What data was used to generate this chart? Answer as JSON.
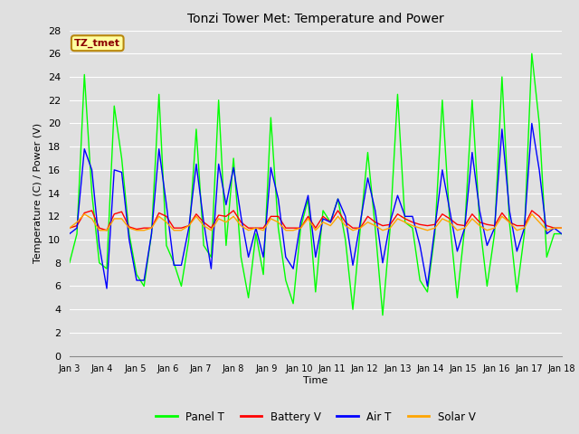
{
  "title": "Tonzi Tower Met: Temperature and Power",
  "xlabel": "Time",
  "ylabel": "Temperature (C) / Power (V)",
  "ylim": [
    0,
    28
  ],
  "yticks": [
    0,
    2,
    4,
    6,
    8,
    10,
    12,
    14,
    16,
    18,
    20,
    22,
    24,
    26,
    28
  ],
  "x_labels": [
    "Jan 3",
    "Jan 4",
    "Jan 5",
    "Jan 6",
    "Jan 7",
    "Jan 8",
    "Jan 9",
    "Jan 10",
    "Jan 11",
    "Jan 12",
    "Jan 13",
    "Jan 14",
    "Jan 15",
    "Jan 16",
    "Jan 17",
    "Jan 18"
  ],
  "bg_color": "#e0e0e0",
  "plot_bg_color": "#e0e0e0",
  "grid_color": "#ffffff",
  "legend_label": "TZ_tmet",
  "legend_box_color": "#ffffa0",
  "legend_text_color": "#8b0000",
  "series_colors": {
    "panel_t": "#00ff00",
    "battery_v": "#ff0000",
    "air_t": "#0000ff",
    "solar_v": "#ffa500"
  },
  "panel_t": [
    8.0,
    10.5,
    24.2,
    14.0,
    8.0,
    7.5,
    21.5,
    17.0,
    10.5,
    7.0,
    6.0,
    10.5,
    22.5,
    9.5,
    8.0,
    6.0,
    10.0,
    19.5,
    9.5,
    8.5,
    22.0,
    9.5,
    17.0,
    8.5,
    5.0,
    10.5,
    7.0,
    20.5,
    11.0,
    6.5,
    4.5,
    11.0,
    13.5,
    5.5,
    12.5,
    11.5,
    13.5,
    10.0,
    4.0,
    11.0,
    17.5,
    11.0,
    3.5,
    11.0,
    22.5,
    11.5,
    11.0,
    6.5,
    5.5,
    10.5,
    22.0,
    11.5,
    5.0,
    11.0,
    22.0,
    11.5,
    6.0,
    10.5,
    24.0,
    11.5,
    5.5,
    10.5,
    26.0,
    20.0,
    8.5,
    10.5,
    10.5
  ],
  "battery_v": [
    11.0,
    11.2,
    12.3,
    12.5,
    11.0,
    10.8,
    12.2,
    12.4,
    11.1,
    10.9,
    11.0,
    11.0,
    12.3,
    12.0,
    11.0,
    11.0,
    11.2,
    12.2,
    11.5,
    11.0,
    12.1,
    12.0,
    12.5,
    11.5,
    11.0,
    11.0,
    11.0,
    12.0,
    12.0,
    11.0,
    11.0,
    11.0,
    12.0,
    11.0,
    12.0,
    11.5,
    12.5,
    11.5,
    11.0,
    11.0,
    12.0,
    11.5,
    11.2,
    11.3,
    12.2,
    11.8,
    11.5,
    11.3,
    11.2,
    11.3,
    12.2,
    11.8,
    11.3,
    11.2,
    12.2,
    11.5,
    11.3,
    11.2,
    12.3,
    11.5,
    11.2,
    11.2,
    12.5,
    12.0,
    11.2,
    11.0,
    11.0
  ],
  "air_t": [
    10.5,
    11.0,
    17.8,
    16.0,
    9.5,
    5.8,
    16.0,
    15.8,
    10.0,
    6.5,
    6.5,
    10.5,
    17.8,
    13.0,
    7.8,
    7.8,
    11.0,
    16.5,
    11.5,
    7.5,
    16.5,
    13.0,
    16.2,
    12.0,
    8.5,
    11.0,
    8.5,
    16.2,
    13.5,
    8.5,
    7.5,
    11.5,
    13.8,
    8.5,
    11.8,
    11.5,
    13.5,
    12.0,
    7.8,
    11.5,
    15.3,
    12.5,
    8.0,
    11.5,
    13.8,
    12.0,
    12.0,
    9.5,
    6.0,
    11.0,
    16.0,
    12.5,
    9.0,
    11.0,
    17.5,
    12.5,
    9.5,
    11.0,
    19.5,
    12.5,
    9.0,
    11.0,
    20.0,
    16.0,
    10.5,
    11.0,
    10.5
  ],
  "solar_v": [
    11.0,
    11.5,
    12.2,
    11.8,
    10.8,
    10.8,
    11.8,
    11.8,
    11.0,
    10.8,
    10.8,
    11.0,
    12.0,
    11.5,
    10.8,
    10.8,
    11.2,
    12.0,
    11.2,
    10.8,
    11.8,
    11.5,
    12.0,
    11.2,
    10.8,
    11.0,
    10.8,
    11.8,
    11.5,
    10.8,
    10.8,
    11.0,
    11.8,
    10.8,
    11.5,
    11.2,
    12.0,
    11.2,
    10.8,
    11.0,
    11.5,
    11.2,
    10.8,
    11.0,
    11.8,
    11.5,
    11.2,
    11.0,
    10.8,
    11.0,
    11.8,
    11.5,
    10.8,
    11.0,
    11.8,
    11.2,
    10.8,
    11.0,
    12.0,
    11.5,
    10.8,
    11.0,
    12.2,
    11.5,
    10.8,
    11.0,
    11.0
  ]
}
